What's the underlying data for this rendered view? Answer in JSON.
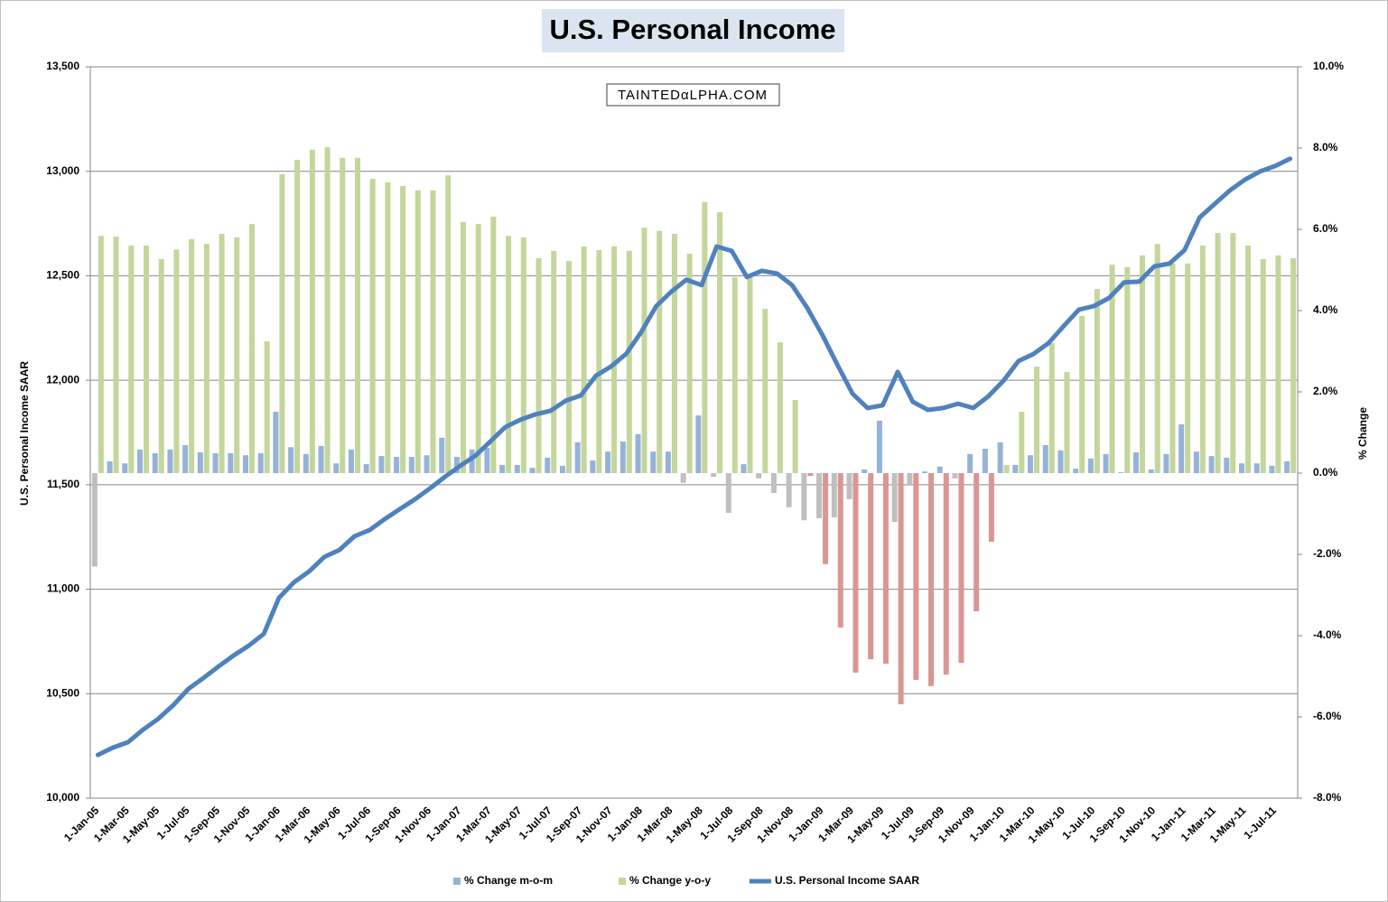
{
  "chart_data": {
    "type": "combo",
    "title": "U.S. Personal Income",
    "watermark": "TAINTEDαLPHA.COM",
    "y_label": "U.S. Personal Income SAAR",
    "y2_label": "% Change",
    "grid": true,
    "legend": "bottom",
    "categories": [
      "1-Jan-05",
      null,
      "1-Mar-05",
      null,
      "1-May-05",
      null,
      "1-Jul-05",
      null,
      "1-Sep-05",
      null,
      "1-Nov-05",
      null,
      "1-Jan-06",
      null,
      "1-Mar-06",
      null,
      "1-May-06",
      null,
      "1-Jul-06",
      null,
      "1-Sep-06",
      null,
      "1-Nov-06",
      null,
      "1-Jan-07",
      null,
      "1-Mar-07",
      null,
      "1-May-07",
      null,
      "1-Jul-07",
      null,
      "1-Sep-07",
      null,
      "1-Nov-07",
      null,
      "1-Jan-08",
      null,
      "1-Mar-08",
      null,
      "1-May-08",
      null,
      "1-Jul-08",
      null,
      "1-Sep-08",
      null,
      "1-Nov-08",
      null,
      "1-Jan-09",
      null,
      "1-Mar-09",
      null,
      "1-May-09",
      null,
      "1-Jul-09",
      null,
      "1-Sep-09",
      null,
      "1-Nov-09",
      null,
      "1-Jan-10",
      null,
      "1-Mar-10",
      null,
      "1-May-10",
      null,
      "1-Jul-10",
      null,
      "1-Sep-10",
      null,
      "1-Nov-10",
      null,
      "1-Jan-11",
      null,
      "1-Mar-11",
      null,
      "1-May-11",
      null,
      "1-Jul-11",
      null
    ],
    "ylim": [
      10000,
      13500
    ],
    "yticks": [
      {
        "value": 10000,
        "label": "10,000"
      },
      {
        "value": 10500,
        "label": "10,500"
      },
      {
        "value": 11000,
        "label": "11,000"
      },
      {
        "value": 11500,
        "label": "11,500"
      },
      {
        "value": 12000,
        "label": "12,000"
      },
      {
        "value": 12500,
        "label": "12,500"
      },
      {
        "value": 13000,
        "label": "13,000"
      },
      {
        "value": 13500,
        "label": "13,500"
      }
    ],
    "y2lim": [
      -8,
      10
    ],
    "y2ticks": [
      {
        "value": -8,
        "label": "-8.0%"
      },
      {
        "value": -6,
        "label": "-6.0%"
      },
      {
        "value": -4,
        "label": "-4.0%"
      },
      {
        "value": -2,
        "label": "-2.0%"
      },
      {
        "value": 0,
        "label": "0.0%"
      },
      {
        "value": 2,
        "label": "2.0%"
      },
      {
        "value": 4,
        "label": "4.0%"
      },
      {
        "value": 6,
        "label": "6.0%"
      },
      {
        "value": 8,
        "label": "8.0%"
      },
      {
        "value": 10,
        "label": "10.0%"
      }
    ],
    "series": [
      {
        "name": "% Change m-o-m",
        "type": "bar",
        "axis": "y2",
        "color": "#95b3d7",
        "negative_color": "#bfbfbf",
        "values": [
          -2.3,
          0.29,
          0.24,
          0.58,
          0.49,
          0.58,
          0.69,
          0.51,
          0.49,
          0.49,
          0.44,
          0.49,
          1.51,
          0.64,
          0.47,
          0.67,
          0.24,
          0.58,
          0.22,
          0.42,
          0.4,
          0.4,
          0.44,
          0.87,
          0.4,
          0.58,
          0.62,
          0.2,
          0.2,
          0.13,
          0.38,
          0.18,
          0.76,
          0.31,
          0.53,
          0.78,
          0.96,
          0.53,
          0.53,
          -0.24,
          1.42,
          -0.09,
          -0.98,
          0.22,
          -0.13,
          -0.49,
          -0.84,
          -1.16,
          -1.11,
          -1.09,
          -0.64,
          0.09,
          1.29,
          -1.2,
          -0.31,
          0.04,
          0.16,
          -0.13,
          0.47,
          0.6,
          0.76,
          0.2,
          0.44,
          0.69,
          0.56,
          0.11,
          0.36,
          0.47,
          0.02,
          0.51,
          0.09,
          0.47,
          1.2,
          0.53,
          0.42,
          0.38,
          0.24,
          0.24,
          0.18,
          0.29
        ]
      },
      {
        "name": "% Change y-o-y",
        "type": "bar",
        "axis": "y2",
        "color": "#c3d69b",
        "negative_color": "#d99694",
        "values": [
          5.84,
          5.82,
          5.6,
          5.6,
          5.27,
          5.5,
          5.76,
          5.64,
          5.89,
          5.8,
          6.13,
          3.24,
          7.36,
          7.71,
          7.96,
          8.02,
          7.76,
          7.76,
          7.24,
          7.16,
          7.07,
          6.96,
          6.96,
          7.33,
          6.18,
          6.13,
          6.31,
          5.84,
          5.8,
          5.29,
          5.47,
          5.22,
          5.58,
          5.49,
          5.58,
          5.47,
          6.04,
          5.96,
          5.89,
          5.4,
          6.67,
          6.42,
          4.82,
          4.87,
          4.04,
          3.22,
          1.8,
          -0.07,
          -2.24,
          -3.8,
          -4.91,
          -4.58,
          -4.69,
          -5.69,
          -5.09,
          -5.24,
          -4.96,
          -4.67,
          -3.4,
          -1.69,
          0.2,
          1.51,
          2.62,
          3.2,
          2.49,
          3.87,
          4.53,
          5.13,
          5.07,
          5.36,
          5.64,
          5.16,
          5.16,
          5.6,
          5.91,
          5.91,
          5.6,
          5.27,
          5.36,
          5.29
        ]
      },
      {
        "name": "U.S. Personal Income SAAR",
        "type": "line",
        "axis": "y",
        "color": "#4f81bd",
        "values": [
          10207,
          10242,
          10268,
          10328,
          10380,
          10445,
          10523,
          10575,
          10631,
          10683,
          10730,
          10787,
          10959,
          11033,
          11085,
          11154,
          11188,
          11253,
          11283,
          11335,
          11383,
          11430,
          11482,
          11538,
          11590,
          11638,
          11707,
          11776,
          11811,
          11837,
          11854,
          11902,
          11927,
          12022,
          12066,
          12126,
          12230,
          12355,
          12424,
          12481,
          12455,
          12640,
          12619,
          12494,
          12524,
          12511,
          12455,
          12347,
          12217,
          12074,
          11936,
          11867,
          11880,
          12040,
          11897,
          11858,
          11867,
          11888,
          11867,
          11923,
          11997,
          12092,
          12126,
          12178,
          12260,
          12338,
          12355,
          12394,
          12468,
          12472,
          12545,
          12558,
          12623,
          12779,
          12844,
          12908,
          12960,
          12999,
          13025,
          13060
        ]
      }
    ]
  }
}
